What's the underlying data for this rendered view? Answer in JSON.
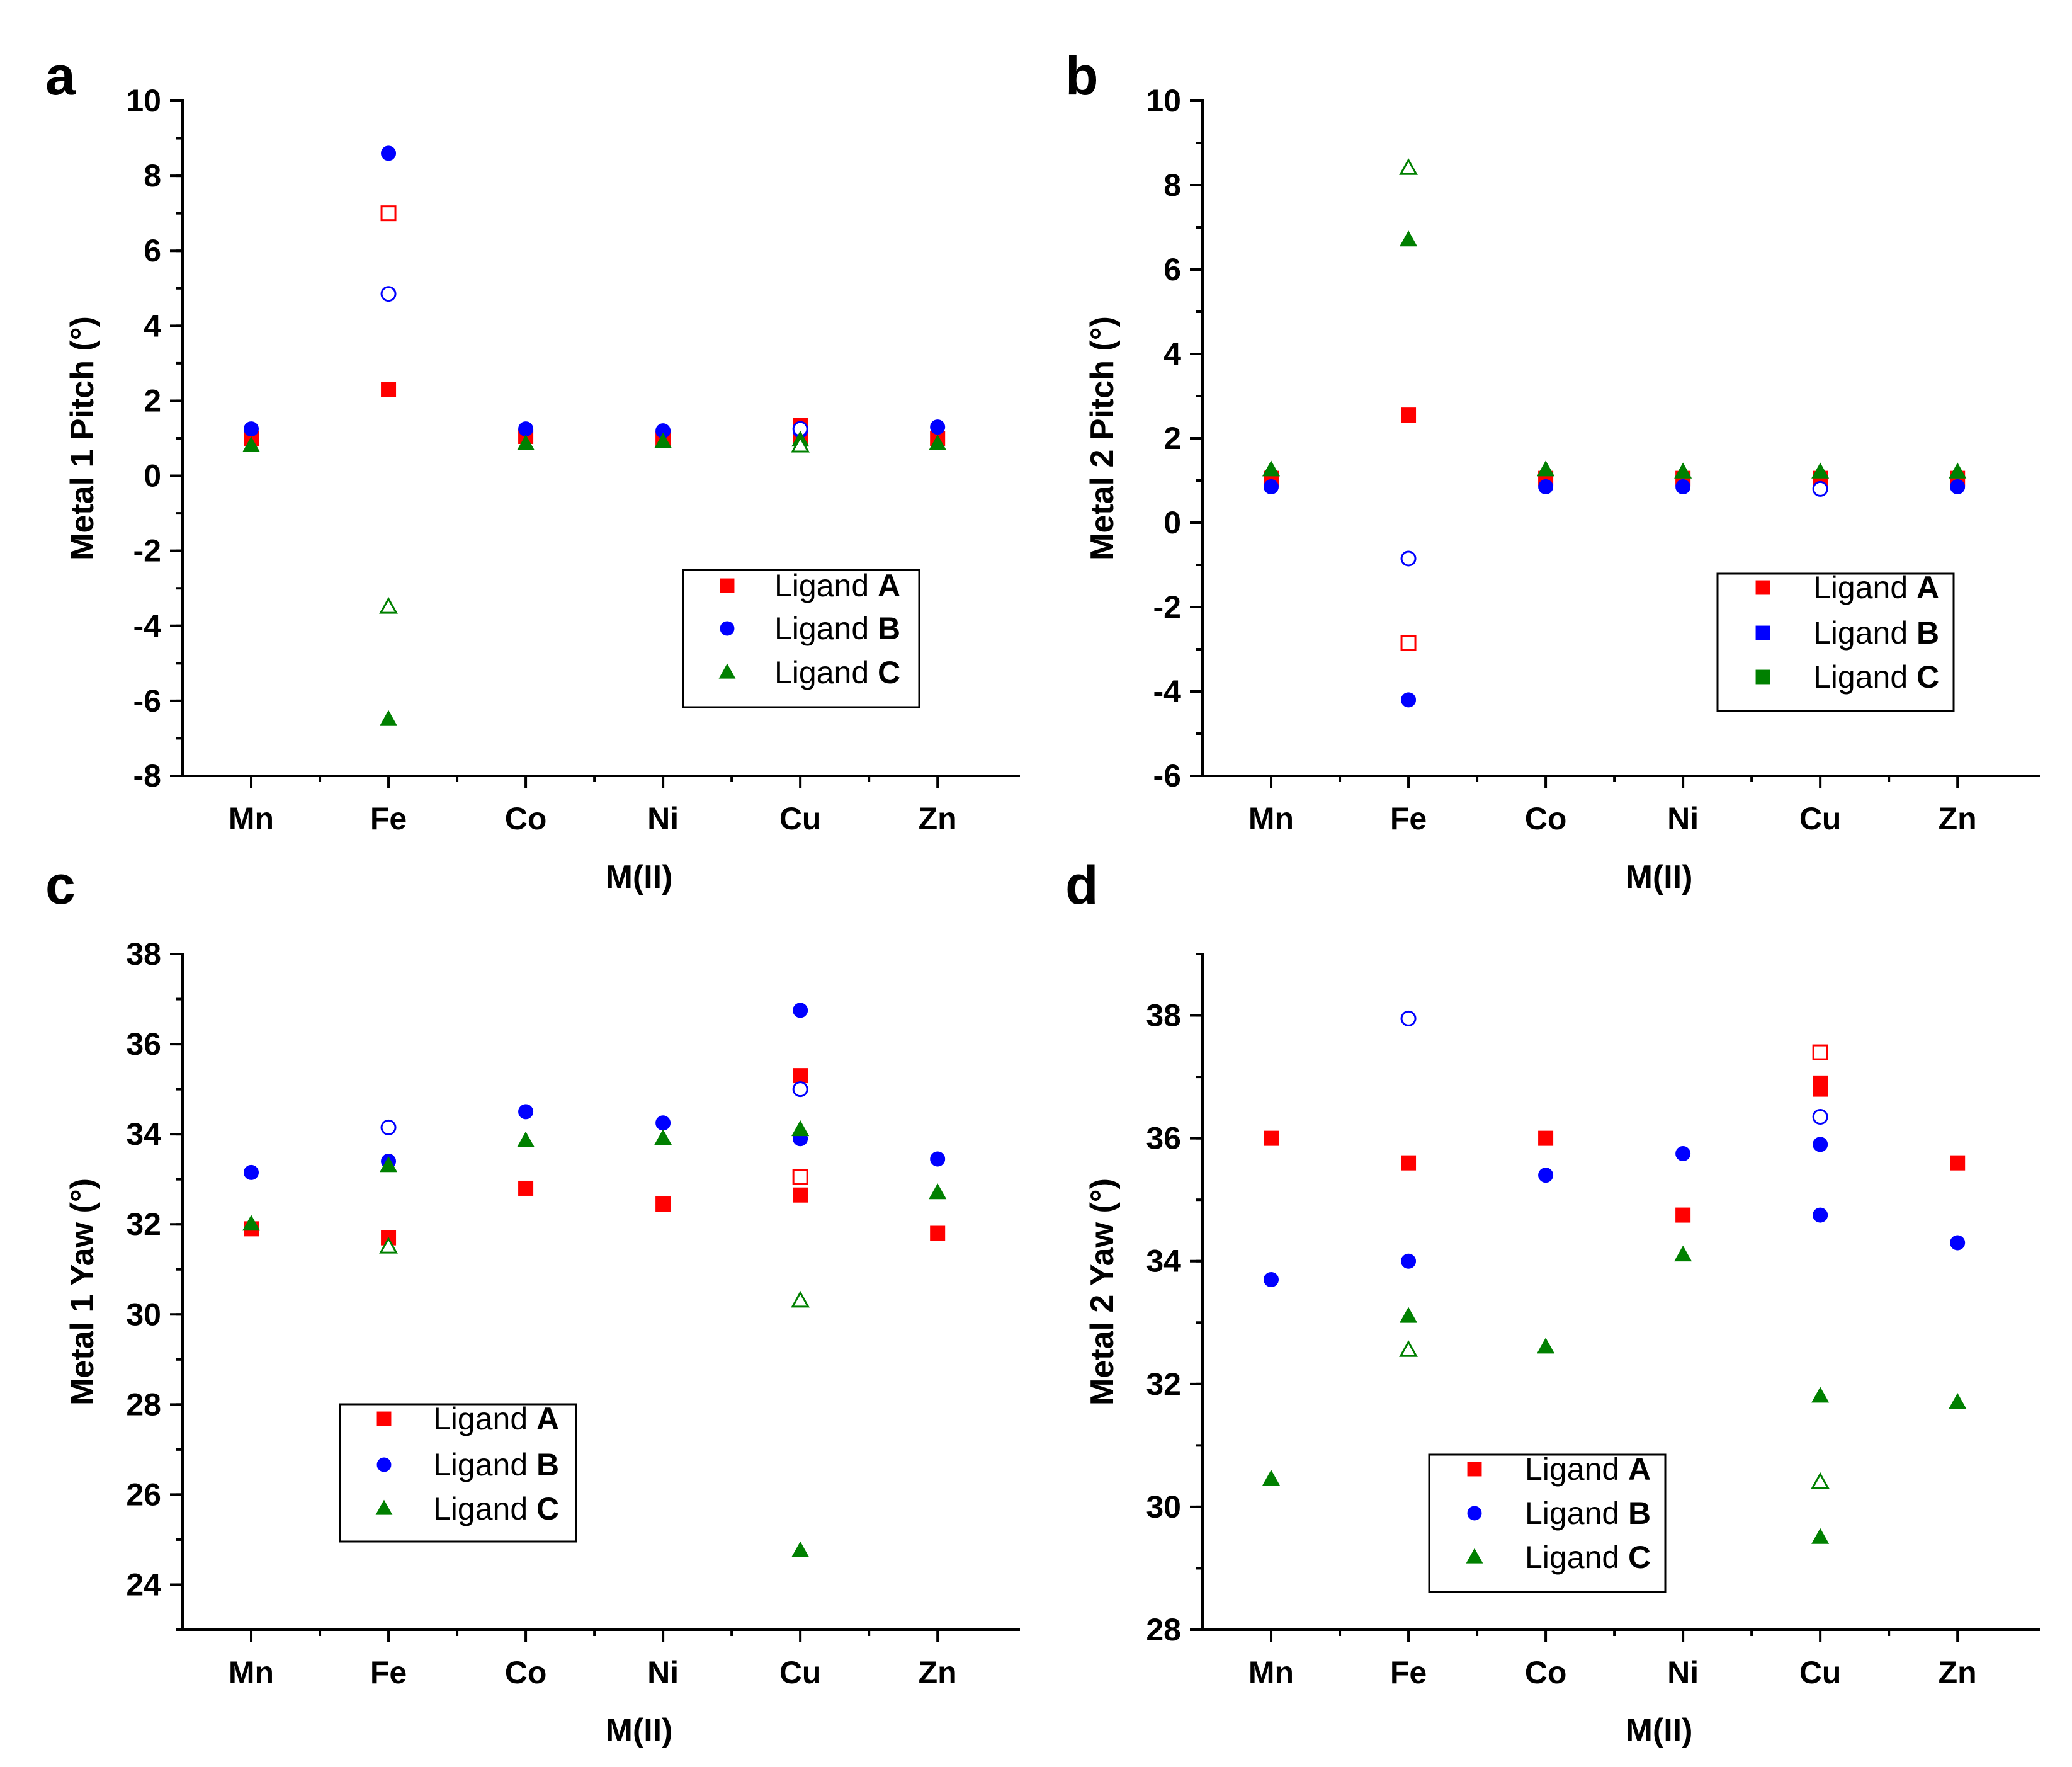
{
  "colors": {
    "A": "#ff0000",
    "B": "#0000ff",
    "C": "#008000"
  },
  "chart_data": [
    {
      "id": "a",
      "type": "scatter",
      "panel_label": "a",
      "xlabel": "M(II)",
      "ylabel": "Metal 1 Pitch (°)",
      "categories": [
        "Mn",
        "Fe",
        "Co",
        "Ni",
        "Cu",
        "Zn"
      ],
      "ylim": [
        -8,
        10
      ],
      "yticks": [
        "-8",
        "-6",
        "-4",
        "-2",
        "0",
        "2",
        "4",
        "6",
        "8",
        "10"
      ],
      "minor_step": 1,
      "legend": {
        "position": "lower-right",
        "marker_shapes": [
          "square",
          "circle",
          "triangle"
        ],
        "entries": [
          {
            "prefix": "Ligand ",
            "bold": "A"
          },
          {
            "prefix": "Ligand ",
            "bold": "B"
          },
          {
            "prefix": "Ligand ",
            "bold": "C"
          }
        ]
      },
      "series": [
        {
          "name": "Ligand A",
          "key": "A",
          "marker": "square",
          "filled": true,
          "points": [
            [
              "Mn",
              1.0
            ],
            [
              "Fe",
              2.3
            ],
            [
              "Co",
              1.05
            ],
            [
              "Ni",
              1.0
            ],
            [
              "Cu",
              1.35
            ],
            [
              "Cu",
              1.0
            ],
            [
              "Zn",
              1.0
            ]
          ]
        },
        {
          "name": "Ligand A (open)",
          "key": "A",
          "marker": "square",
          "filled": false,
          "points": [
            [
              "Fe",
              7.0
            ]
          ]
        },
        {
          "name": "Ligand B",
          "key": "B",
          "marker": "circle",
          "filled": true,
          "points": [
            [
              "Mn",
              1.25
            ],
            [
              "Fe",
              8.6
            ],
            [
              "Co",
              1.25
            ],
            [
              "Ni",
              1.2
            ],
            [
              "Cu",
              1.2
            ],
            [
              "Zn",
              1.3
            ]
          ]
        },
        {
          "name": "Ligand B (open)",
          "key": "B",
          "marker": "circle",
          "filled": false,
          "points": [
            [
              "Fe",
              4.85
            ],
            [
              "Cu",
              1.25
            ]
          ]
        },
        {
          "name": "Ligand C",
          "key": "C",
          "marker": "triangle",
          "filled": true,
          "points": [
            [
              "Mn",
              0.8
            ],
            [
              "Fe",
              -6.5
            ],
            [
              "Co",
              0.85
            ],
            [
              "Ni",
              0.9
            ],
            [
              "Cu",
              0.95
            ],
            [
              "Zn",
              0.85
            ]
          ]
        },
        {
          "name": "Ligand C (open)",
          "key": "C",
          "marker": "triangle",
          "filled": false,
          "points": [
            [
              "Fe",
              -3.5
            ],
            [
              "Cu",
              0.8
            ]
          ]
        }
      ]
    },
    {
      "id": "b",
      "type": "scatter",
      "panel_label": "b",
      "xlabel": "M(II)",
      "ylabel": "Metal 2 Pitch (°)",
      "categories": [
        "Mn",
        "Fe",
        "Co",
        "Ni",
        "Cu",
        "Zn"
      ],
      "ylim": [
        -6,
        10
      ],
      "yticks": [
        "-6",
        "-4",
        "-2",
        "0",
        "2",
        "4",
        "6",
        "8",
        "10"
      ],
      "minor_step": 1,
      "legend": {
        "position": "lower-right",
        "marker_shapes": [
          "square",
          "square",
          "square"
        ],
        "entries": [
          {
            "prefix": "Ligand ",
            "bold": "A"
          },
          {
            "prefix": "Ligand ",
            "bold": "B"
          },
          {
            "prefix": "Ligand ",
            "bold": "C"
          }
        ]
      },
      "series": [
        {
          "name": "Ligand A",
          "key": "A",
          "marker": "square",
          "filled": true,
          "points": [
            [
              "Mn",
              1.05
            ],
            [
              "Fe",
              2.55
            ],
            [
              "Co",
              1.05
            ],
            [
              "Ni",
              1.05
            ],
            [
              "Cu",
              1.05
            ],
            [
              "Zn",
              1.05
            ]
          ]
        },
        {
          "name": "Ligand A (open)",
          "key": "A",
          "marker": "square",
          "filled": false,
          "points": [
            [
              "Fe",
              -2.85
            ]
          ]
        },
        {
          "name": "Ligand B",
          "key": "B",
          "marker": "circle",
          "filled": true,
          "points": [
            [
              "Mn",
              0.85
            ],
            [
              "Fe",
              -4.2
            ],
            [
              "Co",
              0.85
            ],
            [
              "Ni",
              0.85
            ],
            [
              "Zn",
              0.85
            ]
          ]
        },
        {
          "name": "Ligand B (open)",
          "key": "B",
          "marker": "circle",
          "filled": false,
          "points": [
            [
              "Fe",
              -0.85
            ],
            [
              "Cu",
              0.8
            ]
          ]
        },
        {
          "name": "Ligand C",
          "key": "C",
          "marker": "triangle",
          "filled": true,
          "points": [
            [
              "Mn",
              1.25
            ],
            [
              "Fe",
              6.7
            ],
            [
              "Co",
              1.25
            ],
            [
              "Ni",
              1.2
            ],
            [
              "Cu",
              1.2
            ],
            [
              "Zn",
              1.2
            ]
          ]
        },
        {
          "name": "Ligand C (open)",
          "key": "C",
          "marker": "triangle",
          "filled": false,
          "points": [
            [
              "Fe",
              8.4
            ]
          ]
        }
      ]
    },
    {
      "id": "c",
      "type": "scatter",
      "panel_label": "c",
      "xlabel": "M(II)",
      "ylabel": "Metal 1 Yaw (°)",
      "categories": [
        "Mn",
        "Fe",
        "Co",
        "Ni",
        "Cu",
        "Zn"
      ],
      "ylim": [
        23,
        38
      ],
      "yticks": [
        "24",
        "26",
        "28",
        "30",
        "32",
        "34",
        "36",
        "38"
      ],
      "minor_step": 1,
      "legend": {
        "position": "lower-left",
        "marker_shapes": [
          "square",
          "circle",
          "triangle"
        ],
        "entries": [
          {
            "prefix": "Ligand ",
            "bold": "A"
          },
          {
            "prefix": "Ligand ",
            "bold": "B"
          },
          {
            "prefix": "Ligand ",
            "bold": "C"
          }
        ]
      },
      "series": [
        {
          "name": "Ligand A",
          "key": "A",
          "marker": "square",
          "filled": true,
          "points": [
            [
              "Mn",
              31.9
            ],
            [
              "Fe",
              31.7
            ],
            [
              "Co",
              32.8
            ],
            [
              "Ni",
              32.45
            ],
            [
              "Cu",
              35.3
            ],
            [
              "Cu",
              32.65
            ],
            [
              "Zn",
              31.8
            ]
          ]
        },
        {
          "name": "Ligand A (open)",
          "key": "A",
          "marker": "square",
          "filled": false,
          "points": [
            [
              "Cu",
              33.05
            ]
          ]
        },
        {
          "name": "Ligand B",
          "key": "B",
          "marker": "circle",
          "filled": true,
          "points": [
            [
              "Mn",
              33.15
            ],
            [
              "Fe",
              33.4
            ],
            [
              "Co",
              34.5
            ],
            [
              "Ni",
              34.25
            ],
            [
              "Cu",
              36.75
            ],
            [
              "Cu",
              33.9
            ],
            [
              "Zn",
              33.45
            ]
          ]
        },
        {
          "name": "Ligand B (open)",
          "key": "B",
          "marker": "circle",
          "filled": false,
          "points": [
            [
              "Fe",
              34.15
            ],
            [
              "Cu",
              35.0
            ]
          ]
        },
        {
          "name": "Ligand C",
          "key": "C",
          "marker": "triangle",
          "filled": true,
          "points": [
            [
              "Mn",
              32.0
            ],
            [
              "Fe",
              33.3
            ],
            [
              "Co",
              33.85
            ],
            [
              "Ni",
              33.9
            ],
            [
              "Cu",
              34.1
            ],
            [
              "Cu",
              24.75
            ],
            [
              "Zn",
              32.7
            ]
          ]
        },
        {
          "name": "Ligand C (open)",
          "key": "C",
          "marker": "triangle",
          "filled": false,
          "points": [
            [
              "Fe",
              31.5
            ],
            [
              "Cu",
              30.3
            ]
          ]
        }
      ]
    },
    {
      "id": "d",
      "type": "scatter",
      "panel_label": "d",
      "xlabel": "M(II)",
      "ylabel": "Metal 2 Yaw (°)",
      "categories": [
        "Mn",
        "Fe",
        "Co",
        "Ni",
        "Cu",
        "Zn"
      ],
      "ylim": [
        28,
        39
      ],
      "yticks": [
        "28",
        "30",
        "32",
        "34",
        "36",
        "38"
      ],
      "minor_step": 1,
      "legend": {
        "position": "lower-center",
        "marker_shapes": [
          "square",
          "circle",
          "triangle"
        ],
        "entries": [
          {
            "prefix": "Ligand ",
            "bold": "A"
          },
          {
            "prefix": "Ligand ",
            "bold": "B"
          },
          {
            "prefix": "Ligand ",
            "bold": "C"
          }
        ]
      },
      "series": [
        {
          "name": "Ligand A",
          "key": "A",
          "marker": "square",
          "filled": true,
          "points": [
            [
              "Mn",
              36.0
            ],
            [
              "Fe",
              35.6
            ],
            [
              "Co",
              36.0
            ],
            [
              "Ni",
              34.75
            ],
            [
              "Cu",
              36.9
            ],
            [
              "Cu",
              36.8
            ],
            [
              "Zn",
              35.6
            ]
          ]
        },
        {
          "name": "Ligand A (open)",
          "key": "A",
          "marker": "square",
          "filled": false,
          "points": [
            [
              "Cu",
              37.4
            ]
          ]
        },
        {
          "name": "Ligand B",
          "key": "B",
          "marker": "circle",
          "filled": true,
          "points": [
            [
              "Mn",
              33.7
            ],
            [
              "Fe",
              34.0
            ],
            [
              "Co",
              35.4
            ],
            [
              "Ni",
              35.75
            ],
            [
              "Cu",
              35.9
            ],
            [
              "Cu",
              34.75
            ],
            [
              "Zn",
              34.3
            ]
          ]
        },
        {
          "name": "Ligand B (open)",
          "key": "B",
          "marker": "circle",
          "filled": false,
          "points": [
            [
              "Fe",
              37.95
            ],
            [
              "Cu",
              36.35
            ]
          ]
        },
        {
          "name": "Ligand C",
          "key": "C",
          "marker": "triangle",
          "filled": true,
          "points": [
            [
              "Mn",
              30.45
            ],
            [
              "Fe",
              33.1
            ],
            [
              "Co",
              32.6
            ],
            [
              "Ni",
              34.1
            ],
            [
              "Cu",
              31.8
            ],
            [
              "Cu",
              29.5
            ],
            [
              "Zn",
              31.7
            ]
          ]
        },
        {
          "name": "Ligand C (open)",
          "key": "C",
          "marker": "triangle",
          "filled": false,
          "points": [
            [
              "Fe",
              32.55
            ],
            [
              "Cu",
              30.4
            ]
          ]
        }
      ]
    }
  ]
}
